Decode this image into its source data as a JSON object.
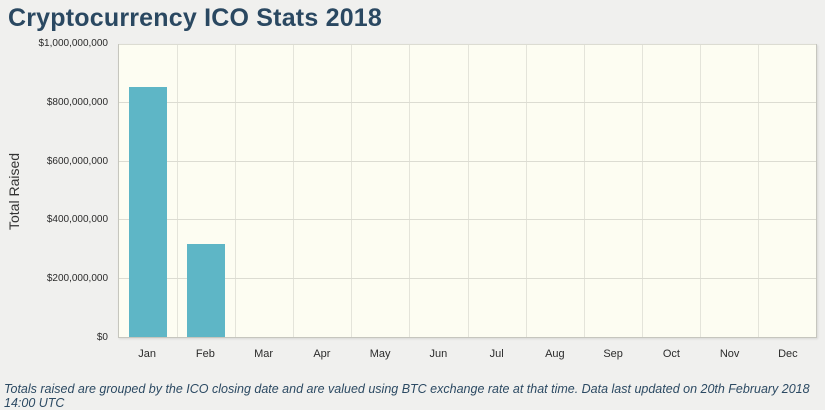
{
  "page": {
    "title": "Cryptocurrency ICO Stats 2018",
    "footnote": "Totals raised are grouped by the ICO closing date and are valued using BTC exchange rate at that time. Data last updated on 20th February 2018 14:00 UTC"
  },
  "colors": {
    "bar": "#5eb6c6",
    "title_text": "#2a4861",
    "plot_background": "#fdfdf2",
    "page_background": "#f0f0ee"
  },
  "chart_data": {
    "type": "bar",
    "title": "Cryptocurrency ICO Stats 2018",
    "xlabel": "",
    "ylabel": "Total Raised",
    "categories": [
      "Jan",
      "Feb",
      "Mar",
      "Apr",
      "May",
      "Jun",
      "Jul",
      "Aug",
      "Sep",
      "Oct",
      "Nov",
      "Dec"
    ],
    "values": [
      855000000,
      320000000,
      0,
      0,
      0,
      0,
      0,
      0,
      0,
      0,
      0,
      0
    ],
    "ylim": [
      0,
      1000000000
    ],
    "ytick_interval": 200000000,
    "ytick_labels": [
      "$0",
      "$200,000,000",
      "$400,000,000",
      "$600,000,000",
      "$800,000,000",
      "$1,000,000,000"
    ],
    "grid": true,
    "legend": false
  }
}
